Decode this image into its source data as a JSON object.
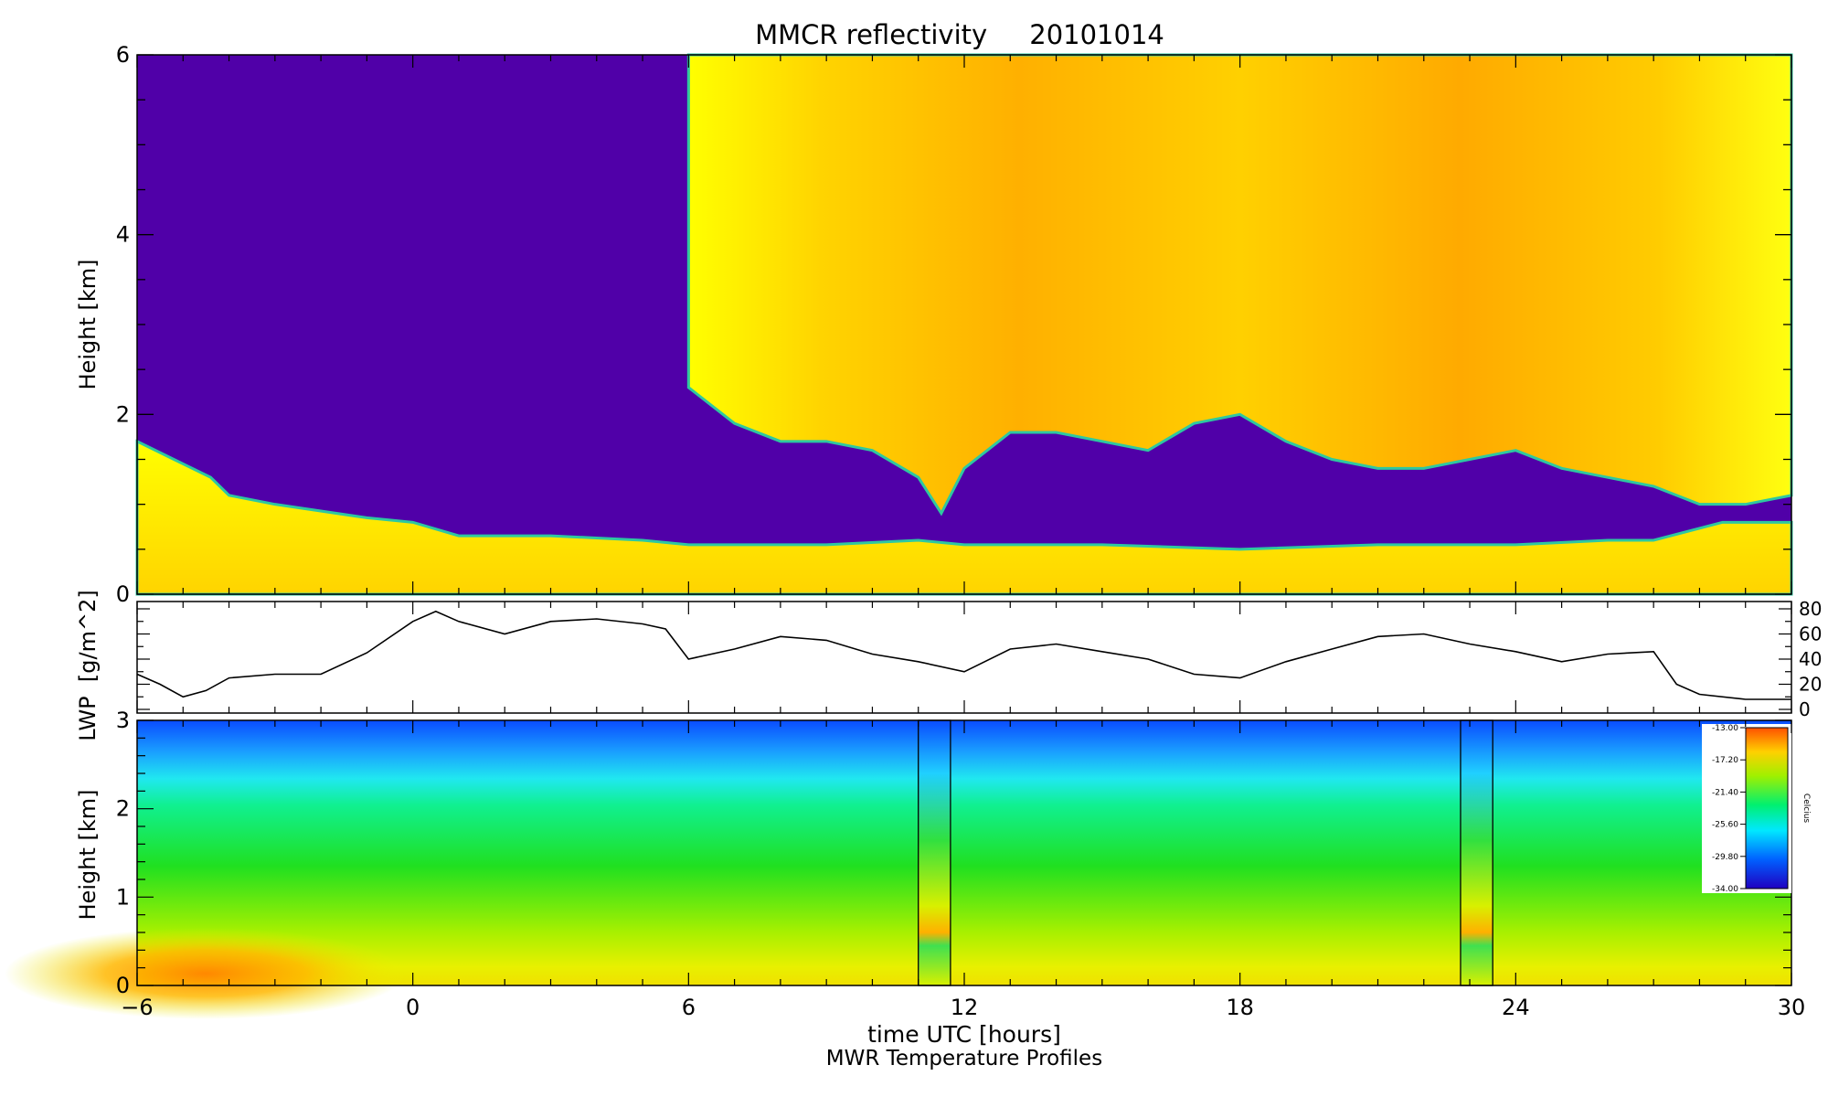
{
  "title": "MMCR reflectivity     20101014",
  "x_axis": {
    "label": "time UTC [hours]",
    "ticks": [
      -6,
      0,
      6,
      12,
      18,
      24,
      30
    ],
    "range": [
      -6,
      30
    ]
  },
  "footer": "MWR Temperature Profiles",
  "colors": {
    "no_echo": "#5000a8",
    "cloud_edge": "#2ec8a0",
    "cloud_low": "#ffff00",
    "cloud_high": "#ff9e00"
  },
  "chart_data": [
    {
      "type": "heatmap",
      "name": "MMCR reflectivity",
      "ylabel": "Height [km]",
      "xlim": [
        -6,
        30
      ],
      "ylim": [
        0,
        6
      ],
      "yticks": [
        0,
        2,
        4,
        6
      ],
      "low_cloud_layer": {
        "x": [
          -6,
          -5.2,
          -4.4,
          -4,
          -3,
          -1,
          0,
          1,
          3,
          5,
          6,
          9,
          11,
          12,
          15,
          18,
          21,
          24,
          26,
          27,
          28.5,
          30
        ],
        "top": [
          1.7,
          1.5,
          1.3,
          1.1,
          1.0,
          0.85,
          0.8,
          0.65,
          0.65,
          0.6,
          0.55,
          0.55,
          0.6,
          0.55,
          0.55,
          0.5,
          0.55,
          0.55,
          0.6,
          0.6,
          0.8,
          0.8
        ]
      },
      "upper_cloud_base": {
        "x": [
          6,
          7,
          8,
          9,
          10,
          11,
          11.5,
          12,
          13,
          14,
          15,
          16,
          17,
          18,
          19,
          20,
          21,
          22,
          23,
          24,
          25,
          26,
          27,
          28,
          29,
          30
        ],
        "base": [
          2.3,
          1.9,
          1.7,
          1.7,
          1.6,
          1.3,
          0.9,
          1.4,
          1.8,
          1.8,
          1.7,
          1.6,
          1.9,
          2.0,
          1.7,
          1.5,
          1.4,
          1.4,
          1.5,
          1.6,
          1.4,
          1.3,
          1.2,
          1.0,
          1.0,
          1.1
        ]
      }
    },
    {
      "type": "line",
      "name": "LWP",
      "ylabel": "LWP  [g/m^2]",
      "ylim": [
        0,
        80
      ],
      "yticks": [
        0,
        20,
        40,
        60,
        80
      ],
      "x": [
        -6,
        -5.5,
        -5,
        -4.5,
        -4,
        -3,
        -2,
        -1,
        0,
        0.5,
        1,
        2,
        3,
        4,
        5,
        5.5,
        6,
        7,
        8,
        9,
        10,
        11,
        12,
        13,
        14,
        15,
        16,
        17,
        18,
        19,
        20,
        21,
        22,
        23,
        24,
        25,
        26,
        27,
        27.5,
        28,
        29,
        30
      ],
      "y": [
        28,
        20,
        10,
        15,
        25,
        28,
        28,
        45,
        70,
        78,
        70,
        60,
        70,
        72,
        68,
        64,
        40,
        48,
        58,
        55,
        44,
        38,
        30,
        48,
        52,
        46,
        40,
        28,
        25,
        38,
        48,
        58,
        60,
        52,
        46,
        38,
        44,
        46,
        20,
        12,
        8,
        8
      ]
    },
    {
      "type": "heatmap",
      "name": "MWR Temperature Profiles",
      "ylabel": "Height [km]",
      "ylim": [
        0,
        3
      ],
      "yticks": [
        0,
        1,
        2,
        3
      ],
      "colorbar": {
        "label": "Celcius",
        "ticks": [
          "-13.00",
          "-17.20",
          "-21.40",
          "-25.60",
          "-29.80",
          "-34.00"
        ]
      },
      "gaps": [
        [
          11.0,
          11.7
        ],
        [
          22.8,
          23.5
        ]
      ]
    }
  ]
}
